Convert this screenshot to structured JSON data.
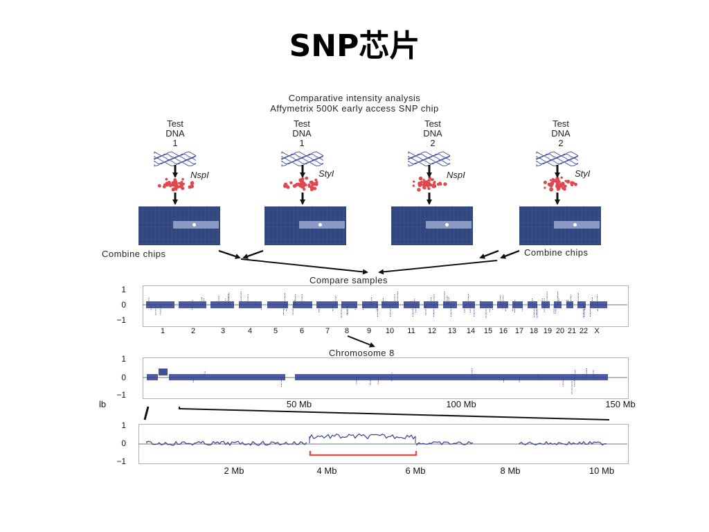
{
  "slide": {
    "title": "SNP芯片"
  },
  "figure": {
    "header_line1": "Comparative intensity analysis",
    "header_line2": "Affymetrix 500K early access SNP chip",
    "samples": [
      {
        "line1": "Test",
        "line2": "DNA",
        "line3": "1",
        "enzyme": "NspI"
      },
      {
        "line1": "Test",
        "line2": "DNA",
        "line3": "1",
        "enzyme": "StyI"
      },
      {
        "line1": "Test",
        "line2": "DNA",
        "line3": "2",
        "enzyme": "NspI"
      },
      {
        "line1": "Test",
        "line2": "DNA",
        "line3": "2",
        "enzyme": "StyI"
      }
    ],
    "combine_left": "Combine chips",
    "combine_right": "Combine chips",
    "compare_label": "Compare samples",
    "chromosome_label": "Chromosome 8",
    "colors": {
      "data": "#2f3e8f",
      "chip": "#30467f",
      "dna_strand": "#3a4aa0",
      "digest": "#e0474f",
      "bracket": "#d9534f"
    }
  },
  "plot_genome": {
    "yticks": [
      "1",
      "0",
      "−1"
    ],
    "xticks": [
      "1",
      "2",
      "3",
      "4",
      "5",
      "6",
      "7",
      "8",
      "9",
      "10",
      "11",
      "12",
      "13",
      "14",
      "15",
      "16",
      "17",
      "18",
      "19",
      "20",
      "21",
      "22",
      "X"
    ]
  },
  "plot_chr8": {
    "yticks": [
      "1",
      "0",
      "−1"
    ],
    "xticks": [
      "lb",
      "50 Mb",
      "100 Mb",
      "150 Mb"
    ]
  },
  "plot_zoom": {
    "yticks": [
      "1",
      "0",
      "−1"
    ],
    "xticks": [
      "2 Mb",
      "4 Mb",
      "6 Mb",
      "8 Mb",
      "10 Mb"
    ]
  }
}
